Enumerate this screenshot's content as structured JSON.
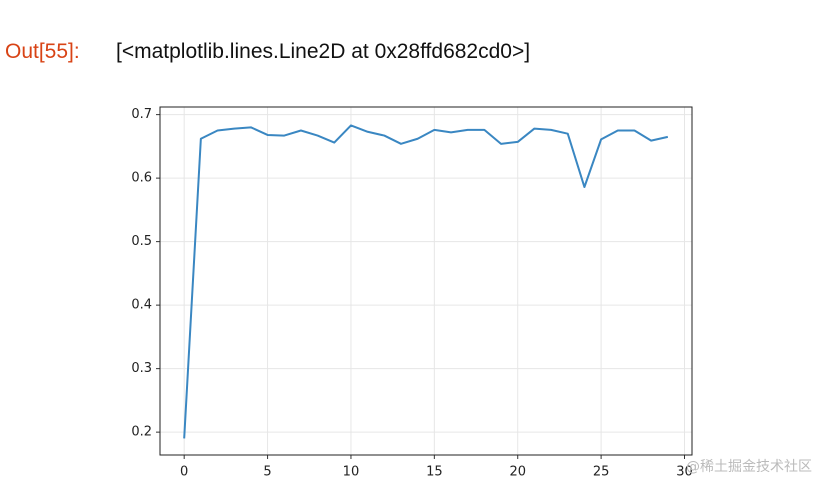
{
  "cell": {
    "prompt": "Out[55]:",
    "output": "[<matplotlib.lines.Line2D at 0x28ffd682cd0>]"
  },
  "chart_data": {
    "type": "line",
    "x": [
      0,
      1,
      2,
      3,
      4,
      5,
      6,
      7,
      8,
      9,
      10,
      11,
      12,
      13,
      14,
      15,
      16,
      17,
      18,
      19,
      20,
      21,
      22,
      23,
      24,
      25,
      26,
      27,
      28,
      29
    ],
    "values": [
      0.19,
      0.662,
      0.675,
      0.678,
      0.68,
      0.668,
      0.667,
      0.675,
      0.667,
      0.656,
      0.683,
      0.673,
      0.667,
      0.654,
      0.662,
      0.676,
      0.672,
      0.676,
      0.676,
      0.654,
      0.657,
      0.678,
      0.676,
      0.67,
      0.586,
      0.661,
      0.675,
      0.675,
      0.659,
      0.665
    ],
    "color": "#3a87c2",
    "xlim": [
      -1.45,
      30.45
    ],
    "ylim": [
      0.164,
      0.712
    ],
    "xticks": [
      0,
      5,
      10,
      15,
      20,
      25,
      30
    ],
    "yticks": [
      0.2,
      0.3,
      0.4,
      0.5,
      0.6,
      0.7
    ],
    "grid": true
  },
  "watermark": "@稀土掘金技术社区"
}
